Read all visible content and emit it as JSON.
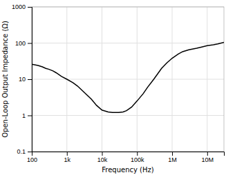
{
  "chart_data": {
    "type": "line",
    "xlabel": "Frequency (Hz)",
    "ylabel": "Open-Loop Output Impedance (Ω)",
    "x": [
      100,
      150,
      200,
      250,
      300,
      400,
      500,
      700,
      1000,
      1500,
      2000,
      3000,
      5000,
      7000,
      10000,
      15000,
      20000,
      25000,
      30000,
      40000,
      50000,
      70000,
      100000,
      150000,
      200000,
      300000,
      500000,
      700000,
      1000000,
      1500000,
      2000000,
      3000000,
      5000000,
      7000000,
      10000000,
      15000000,
      20000000,
      30000000
    ],
    "values": [
      26,
      24,
      22,
      20,
      19,
      17,
      15,
      12,
      10,
      8,
      6.5,
      4.5,
      2.8,
      1.9,
      1.4,
      1.25,
      1.2,
      1.2,
      1.2,
      1.25,
      1.35,
      1.7,
      2.5,
      4.0,
      6.0,
      10,
      20,
      28,
      38,
      50,
      58,
      65,
      72,
      78,
      85,
      90,
      95,
      105
    ],
    "color": "#000000",
    "xlim": [
      100,
      30000000
    ],
    "ylim": [
      0.1,
      1000
    ],
    "xticks": [
      100,
      {
        "value": 1000,
        "label": "1k"
      },
      {
        "value": 10000,
        "label": "10k"
      },
      {
        "value": 100000,
        "label": "100k"
      },
      {
        "value": 1000000,
        "label": "1M"
      },
      {
        "value": 10000000,
        "label": "10M"
      }
    ],
    "yticks": [
      0.1,
      1,
      10,
      100,
      1000
    ],
    "log": true,
    "grid": true
  }
}
